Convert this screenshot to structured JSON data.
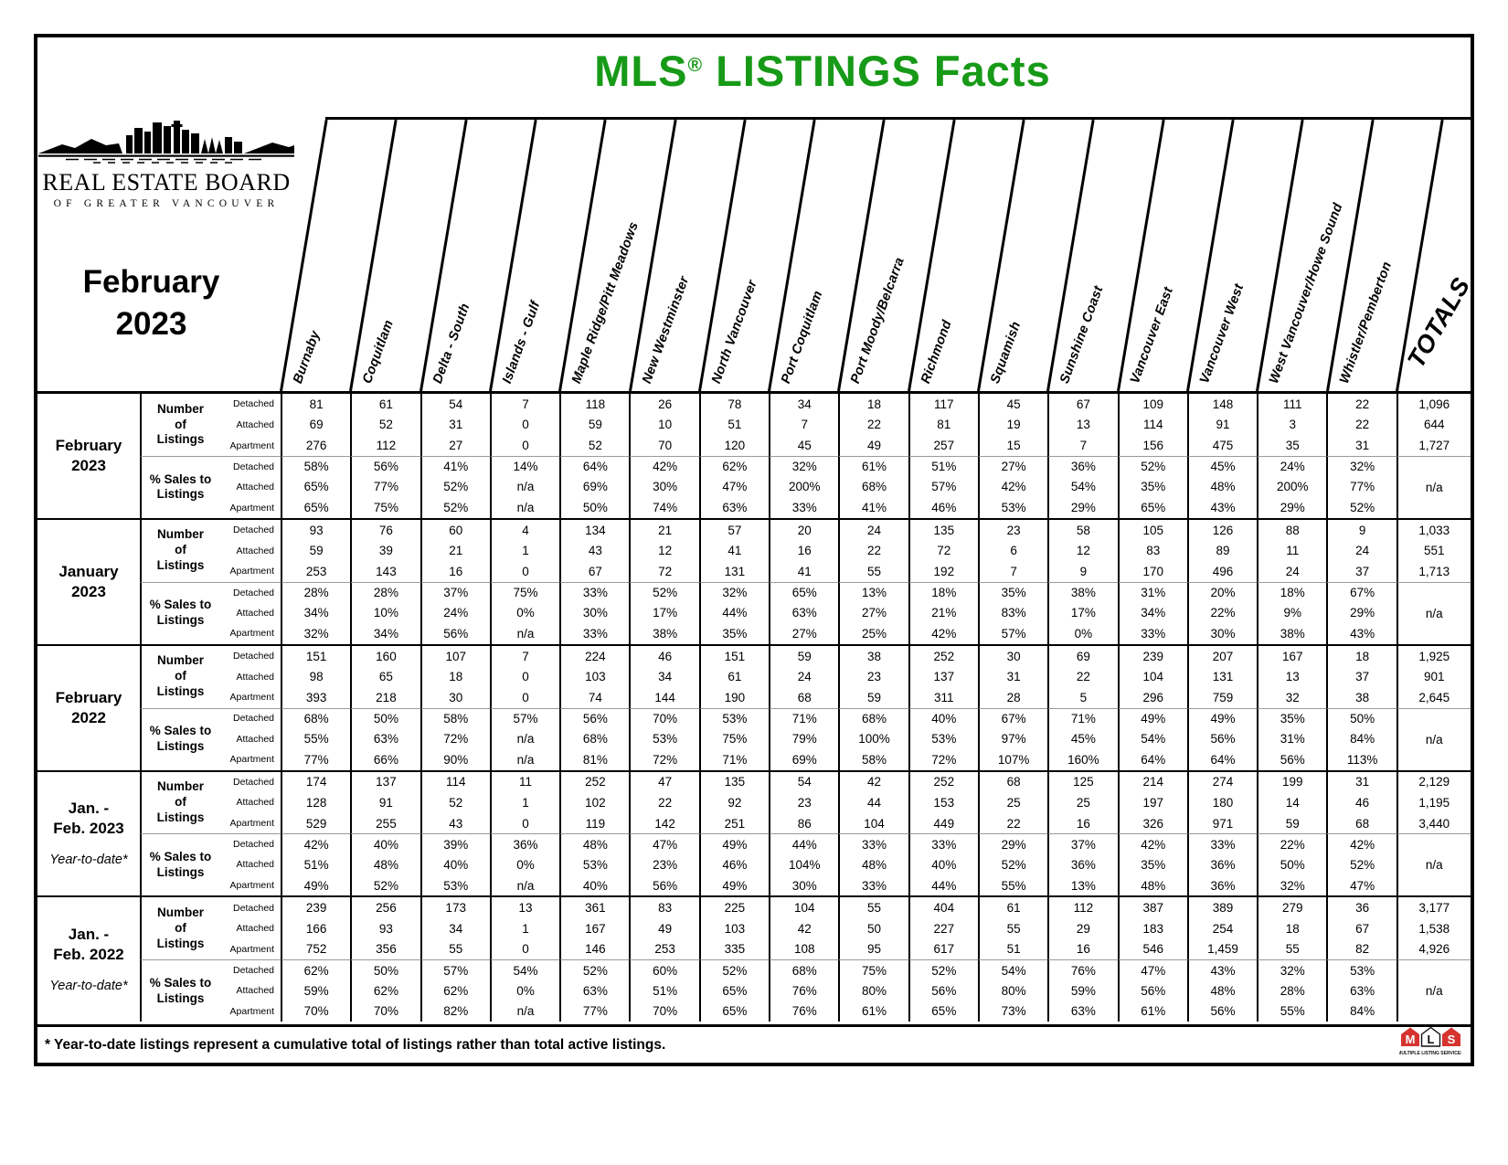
{
  "page": {
    "title_prefix": "MLS",
    "title_reg": "®",
    "title_rest": " LISTINGS Facts",
    "title_color": "#179A17",
    "logo_line1": "REAL ESTATE BOARD",
    "logo_line2": "OF GREATER VANCOUVER",
    "period_line1": "February",
    "period_line2": "2023"
  },
  "table": {
    "area_columns": [
      "Burnaby",
      "Coquitlam",
      "Delta - South",
      "Islands - Gulf",
      "Maple Ridge/Pitt Meadows",
      "New Westminster",
      "North Vancouver",
      "Port Coquitlam",
      "Port Moody/Belcarra",
      "Richmond",
      "Squamish",
      "Sunshine Coast",
      "Vancouver East",
      "Vancouver West",
      "West Vancouver/Howe Sound",
      "Whistler/Pemberton"
    ],
    "totals_label": "TOTALS",
    "section_labels": {
      "listings_lines": [
        "Number",
        "of",
        "Listings"
      ],
      "sales_lines": [
        "% Sales to",
        "Listings"
      ],
      "types": [
        "Detached",
        "Attached",
        "Apartment"
      ]
    },
    "groups": [
      {
        "period_lines": [
          "February",
          "2023"
        ],
        "ytd_note": "",
        "listings": {
          "rows": [
            {
              "type": "Detached",
              "values": [
                "81",
                "61",
                "54",
                "7",
                "118",
                "26",
                "78",
                "34",
                "18",
                "117",
                "45",
                "67",
                "109",
                "148",
                "111",
                "22"
              ],
              "total": "1,096"
            },
            {
              "type": "Attached",
              "values": [
                "69",
                "52",
                "31",
                "0",
                "59",
                "10",
                "51",
                "7",
                "22",
                "81",
                "19",
                "13",
                "114",
                "91",
                "3",
                "22"
              ],
              "total": "644"
            },
            {
              "type": "Apartment",
              "values": [
                "276",
                "112",
                "27",
                "0",
                "52",
                "70",
                "120",
                "45",
                "49",
                "257",
                "15",
                "7",
                "156",
                "475",
                "35",
                "31"
              ],
              "total": "1,727"
            }
          ]
        },
        "sales": {
          "rows": [
            {
              "type": "Detached",
              "values": [
                "58%",
                "56%",
                "41%",
                "14%",
                "64%",
                "42%",
                "62%",
                "32%",
                "61%",
                "51%",
                "27%",
                "36%",
                "52%",
                "45%",
                "24%",
                "32%"
              ]
            },
            {
              "type": "Attached",
              "values": [
                "65%",
                "77%",
                "52%",
                "n/a",
                "69%",
                "30%",
                "47%",
                "200%",
                "68%",
                "57%",
                "42%",
                "54%",
                "35%",
                "48%",
                "200%",
                "77%"
              ]
            },
            {
              "type": "Apartment",
              "values": [
                "65%",
                "75%",
                "52%",
                "n/a",
                "50%",
                "74%",
                "63%",
                "33%",
                "41%",
                "46%",
                "53%",
                "29%",
                "65%",
                "43%",
                "29%",
                "52%"
              ]
            }
          ],
          "total": "n/a"
        }
      },
      {
        "period_lines": [
          "January",
          "2023"
        ],
        "ytd_note": "",
        "listings": {
          "rows": [
            {
              "type": "Detached",
              "values": [
                "93",
                "76",
                "60",
                "4",
                "134",
                "21",
                "57",
                "20",
                "24",
                "135",
                "23",
                "58",
                "105",
                "126",
                "88",
                "9"
              ],
              "total": "1,033"
            },
            {
              "type": "Attached",
              "values": [
                "59",
                "39",
                "21",
                "1",
                "43",
                "12",
                "41",
                "16",
                "22",
                "72",
                "6",
                "12",
                "83",
                "89",
                "11",
                "24"
              ],
              "total": "551"
            },
            {
              "type": "Apartment",
              "values": [
                "253",
                "143",
                "16",
                "0",
                "67",
                "72",
                "131",
                "41",
                "55",
                "192",
                "7",
                "9",
                "170",
                "496",
                "24",
                "37"
              ],
              "total": "1,713"
            }
          ]
        },
        "sales": {
          "rows": [
            {
              "type": "Detached",
              "values": [
                "28%",
                "28%",
                "37%",
                "75%",
                "33%",
                "52%",
                "32%",
                "65%",
                "13%",
                "18%",
                "35%",
                "38%",
                "31%",
                "20%",
                "18%",
                "67%"
              ]
            },
            {
              "type": "Attached",
              "values": [
                "34%",
                "10%",
                "24%",
                "0%",
                "30%",
                "17%",
                "44%",
                "63%",
                "27%",
                "21%",
                "83%",
                "17%",
                "34%",
                "22%",
                "9%",
                "29%"
              ]
            },
            {
              "type": "Apartment",
              "values": [
                "32%",
                "34%",
                "56%",
                "n/a",
                "33%",
                "38%",
                "35%",
                "27%",
                "25%",
                "42%",
                "57%",
                "0%",
                "33%",
                "30%",
                "38%",
                "43%"
              ]
            }
          ],
          "total": "n/a"
        }
      },
      {
        "period_lines": [
          "February",
          "2022"
        ],
        "ytd_note": "",
        "listings": {
          "rows": [
            {
              "type": "Detached",
              "values": [
                "151",
                "160",
                "107",
                "7",
                "224",
                "46",
                "151",
                "59",
                "38",
                "252",
                "30",
                "69",
                "239",
                "207",
                "167",
                "18"
              ],
              "total": "1,925"
            },
            {
              "type": "Attached",
              "values": [
                "98",
                "65",
                "18",
                "0",
                "103",
                "34",
                "61",
                "24",
                "23",
                "137",
                "31",
                "22",
                "104",
                "131",
                "13",
                "37"
              ],
              "total": "901"
            },
            {
              "type": "Apartment",
              "values": [
                "393",
                "218",
                "30",
                "0",
                "74",
                "144",
                "190",
                "68",
                "59",
                "311",
                "28",
                "5",
                "296",
                "759",
                "32",
                "38"
              ],
              "total": "2,645"
            }
          ]
        },
        "sales": {
          "rows": [
            {
              "type": "Detached",
              "values": [
                "68%",
                "50%",
                "58%",
                "57%",
                "56%",
                "70%",
                "53%",
                "71%",
                "68%",
                "40%",
                "67%",
                "71%",
                "49%",
                "49%",
                "35%",
                "50%"
              ]
            },
            {
              "type": "Attached",
              "values": [
                "55%",
                "63%",
                "72%",
                "n/a",
                "68%",
                "53%",
                "75%",
                "79%",
                "100%",
                "53%",
                "97%",
                "45%",
                "54%",
                "56%",
                "31%",
                "84%"
              ]
            },
            {
              "type": "Apartment",
              "values": [
                "77%",
                "66%",
                "90%",
                "n/a",
                "81%",
                "72%",
                "71%",
                "69%",
                "58%",
                "72%",
                "107%",
                "160%",
                "64%",
                "64%",
                "56%",
                "113%"
              ]
            }
          ],
          "total": "n/a"
        }
      },
      {
        "period_lines": [
          "Jan. -",
          "Feb. 2023"
        ],
        "ytd_note": "Year-to-date*",
        "listings": {
          "rows": [
            {
              "type": "Detached",
              "values": [
                "174",
                "137",
                "114",
                "11",
                "252",
                "47",
                "135",
                "54",
                "42",
                "252",
                "68",
                "125",
                "214",
                "274",
                "199",
                "31"
              ],
              "total": "2,129"
            },
            {
              "type": "Attached",
              "values": [
                "128",
                "91",
                "52",
                "1",
                "102",
                "22",
                "92",
                "23",
                "44",
                "153",
                "25",
                "25",
                "197",
                "180",
                "14",
                "46"
              ],
              "total": "1,195"
            },
            {
              "type": "Apartment",
              "values": [
                "529",
                "255",
                "43",
                "0",
                "119",
                "142",
                "251",
                "86",
                "104",
                "449",
                "22",
                "16",
                "326",
                "971",
                "59",
                "68"
              ],
              "total": "3,440"
            }
          ]
        },
        "sales": {
          "rows": [
            {
              "type": "Detached",
              "values": [
                "42%",
                "40%",
                "39%",
                "36%",
                "48%",
                "47%",
                "49%",
                "44%",
                "33%",
                "33%",
                "29%",
                "37%",
                "42%",
                "33%",
                "22%",
                "42%"
              ]
            },
            {
              "type": "Attached",
              "values": [
                "51%",
                "48%",
                "40%",
                "0%",
                "53%",
                "23%",
                "46%",
                "104%",
                "48%",
                "40%",
                "52%",
                "36%",
                "35%",
                "36%",
                "50%",
                "52%"
              ]
            },
            {
              "type": "Apartment",
              "values": [
                "49%",
                "52%",
                "53%",
                "n/a",
                "40%",
                "56%",
                "49%",
                "30%",
                "33%",
                "44%",
                "55%",
                "13%",
                "48%",
                "36%",
                "32%",
                "47%"
              ]
            }
          ],
          "total": "n/a"
        }
      },
      {
        "period_lines": [
          "Jan. -",
          "Feb. 2022"
        ],
        "ytd_note": "Year-to-date*",
        "listings": {
          "rows": [
            {
              "type": "Detached",
              "values": [
                "239",
                "256",
                "173",
                "13",
                "361",
                "83",
                "225",
                "104",
                "55",
                "404",
                "61",
                "112",
                "387",
                "389",
                "279",
                "36"
              ],
              "total": "3,177"
            },
            {
              "type": "Attached",
              "values": [
                "166",
                "93",
                "34",
                "1",
                "167",
                "49",
                "103",
                "42",
                "50",
                "227",
                "55",
                "29",
                "183",
                "254",
                "18",
                "67"
              ],
              "total": "1,538"
            },
            {
              "type": "Apartment",
              "values": [
                "752",
                "356",
                "55",
                "0",
                "146",
                "253",
                "335",
                "108",
                "95",
                "617",
                "51",
                "16",
                "546",
                "1,459",
                "55",
                "82"
              ],
              "total": "4,926"
            }
          ]
        },
        "sales": {
          "rows": [
            {
              "type": "Detached",
              "values": [
                "62%",
                "50%",
                "57%",
                "54%",
                "52%",
                "60%",
                "52%",
                "68%",
                "75%",
                "52%",
                "54%",
                "76%",
                "47%",
                "43%",
                "32%",
                "53%"
              ]
            },
            {
              "type": "Attached",
              "values": [
                "59%",
                "62%",
                "62%",
                "0%",
                "63%",
                "51%",
                "65%",
                "76%",
                "80%",
                "56%",
                "80%",
                "59%",
                "56%",
                "48%",
                "28%",
                "63%"
              ]
            },
            {
              "type": "Apartment",
              "values": [
                "70%",
                "70%",
                "82%",
                "n/a",
                "77%",
                "70%",
                "65%",
                "76%",
                "61%",
                "65%",
                "73%",
                "63%",
                "61%",
                "56%",
                "55%",
                "84%"
              ]
            }
          ],
          "total": "n/a"
        }
      }
    ]
  },
  "footer": {
    "note": "* Year-to-date listings represent a cumulative total of listings rather than total active listings.",
    "mls_letters": [
      "M",
      "L",
      "S"
    ],
    "mls_caption": "MULTIPLE LISTING SERVICE®",
    "mls_red": "#d6332f"
  }
}
